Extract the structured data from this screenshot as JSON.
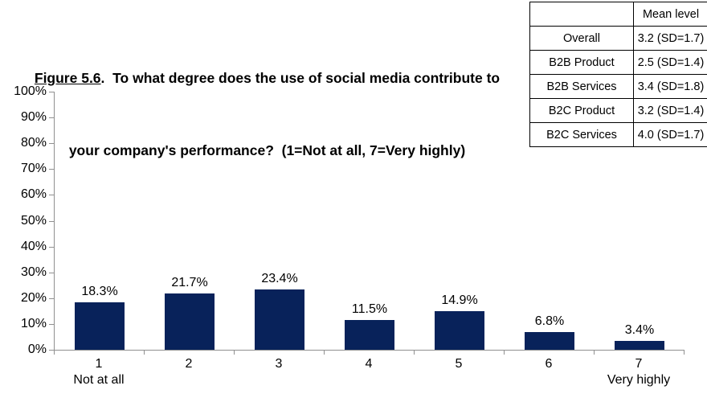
{
  "figure": {
    "label": "Figure 5.6",
    "title_rest": ".  To what degree does the use of social media contribute to",
    "title_line2": "your company's performance?  (1=Not at all, 7=Very highly)"
  },
  "mean_table": {
    "header": "Mean level",
    "rows": [
      {
        "group": "Overall",
        "value": "3.2 (SD=1.7)"
      },
      {
        "group": "B2B Product",
        "value": "2.5 (SD=1.4)"
      },
      {
        "group": "B2B Services",
        "value": "3.4 (SD=1.8)"
      },
      {
        "group": "B2C Product",
        "value": "3.2 (SD=1.4)"
      },
      {
        "group": "B2C Services",
        "value": "4.0 (SD=1.7)"
      }
    ]
  },
  "chart_data": {
    "type": "bar",
    "title": "Figure 5.6. To what degree does the use of social media contribute to your company's performance? (1=Not at all, 7=Very highly)",
    "categories": [
      "1",
      "2",
      "3",
      "4",
      "5",
      "6",
      "7"
    ],
    "category_sublabels": [
      "Not at all",
      "",
      "",
      "",
      "",
      "",
      "Very highly"
    ],
    "values": [
      18.3,
      21.7,
      23.4,
      11.5,
      14.9,
      6.8,
      3.4
    ],
    "value_labels": [
      "18.3%",
      "21.7%",
      "23.4%",
      "11.5%",
      "14.9%",
      "6.8%",
      "3.4%"
    ],
    "ytick_labels": [
      "0%",
      "10%",
      "20%",
      "30%",
      "40%",
      "50%",
      "60%",
      "70%",
      "80%",
      "90%",
      "100%"
    ],
    "ylim": [
      0,
      100
    ],
    "xlabel": "",
    "ylabel": "",
    "grid": false,
    "legend": "none",
    "bar_color": "#08225a",
    "axis_color": "#909090",
    "label_color": "#000000"
  }
}
